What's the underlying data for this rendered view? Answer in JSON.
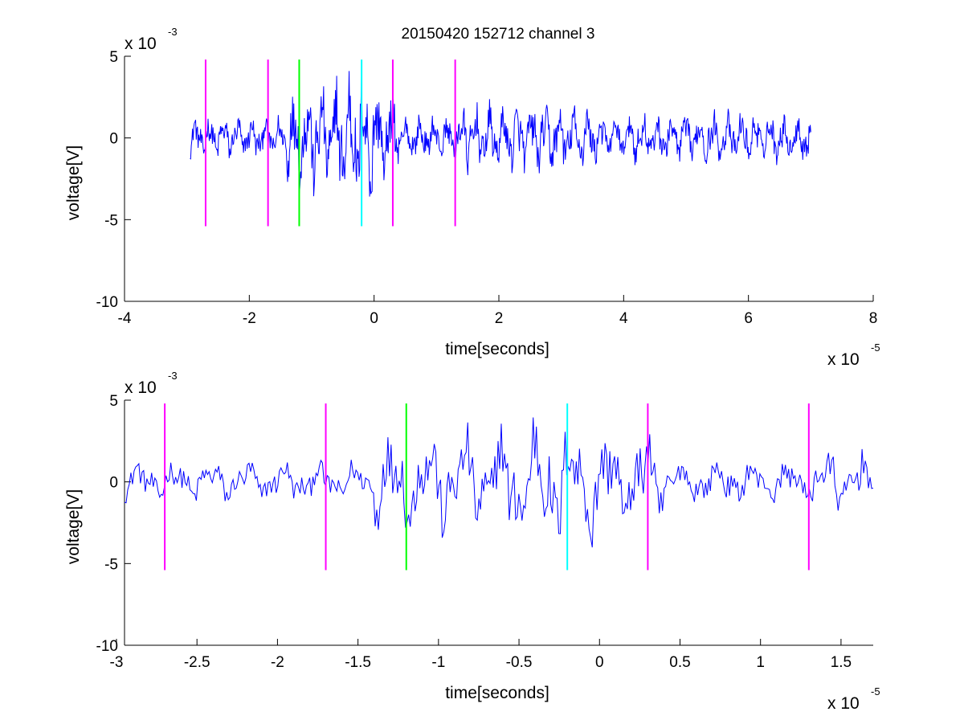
{
  "figure_title": "20150420 152712 channel 3",
  "chart_data": [
    {
      "type": "line",
      "title": "20150420 152712 channel 3",
      "xlabel": "time[seconds]",
      "ylabel": "voltage[V]",
      "xlim": [
        -4e-05,
        8e-05
      ],
      "ylim": [
        -0.01,
        0.005
      ],
      "x_ticks": [
        -4e-05,
        -2e-05,
        0,
        2e-05,
        4e-05,
        6e-05,
        8e-05
      ],
      "x_tick_labels": [
        "-4",
        "-2",
        "0",
        "2",
        "4",
        "6",
        "8"
      ],
      "y_ticks": [
        -0.01,
        -0.005,
        0,
        0.005
      ],
      "y_tick_labels": [
        "-10",
        "-5",
        "0",
        "5"
      ],
      "x_exponent_label": "x 10",
      "x_exponent_power": "-5",
      "y_exponent_label": "x 10",
      "y_exponent_power": "-3",
      "grid": false,
      "signal": {
        "color": "#0000ff",
        "x_start": -2.95e-05,
        "x_end": 7e-05,
        "sample_count": 1000,
        "note_levels": "approximate random-like oscillation between about -4.7e-3 and 3.7e-3 V"
      },
      "markers": [
        {
          "x": -2.7e-05,
          "y_from": -0.0054,
          "y_to": 0.0048,
          "color": "#ff00ff"
        },
        {
          "x": -1.7e-05,
          "y_from": -0.0054,
          "y_to": 0.0048,
          "color": "#ff00ff"
        },
        {
          "x": -1.2e-05,
          "y_from": -0.0054,
          "y_to": 0.0048,
          "color": "#00ff00"
        },
        {
          "x": -2e-06,
          "y_from": -0.0054,
          "y_to": 0.0048,
          "color": "#00ffff"
        },
        {
          "x": 3e-06,
          "y_from": -0.0054,
          "y_to": 0.0048,
          "color": "#ff00ff"
        },
        {
          "x": 1.3e-05,
          "y_from": -0.0054,
          "y_to": 0.0048,
          "color": "#ff00ff"
        }
      ]
    },
    {
      "type": "line",
      "title": "",
      "xlabel": "time[seconds]",
      "ylabel": "voltage[V]",
      "xlim": [
        -2.95e-05,
        1.7e-05
      ],
      "ylim": [
        -0.01,
        0.005
      ],
      "x_ticks": [
        -3e-05,
        -2.5e-05,
        -2e-05,
        -1.5e-05,
        -1e-05,
        -5e-06,
        0,
        5e-06,
        1e-05,
        1.5e-05
      ],
      "x_tick_labels": [
        "-3",
        "-2.5",
        "-2",
        "-1.5",
        "-1",
        "-0.5",
        "0",
        "0.5",
        "1",
        "1.5"
      ],
      "y_ticks": [
        -0.01,
        -0.005,
        0,
        0.005
      ],
      "y_tick_labels": [
        "-10",
        "-5",
        "0",
        "5"
      ],
      "x_exponent_label": "x 10",
      "x_exponent_power": "-5",
      "y_exponent_label": "x 10",
      "y_exponent_power": "-3",
      "grid": false,
      "signal": {
        "color": "#0000ff",
        "x_start": -2.95e-05,
        "x_end": 1.7e-05,
        "sample_count": 470
      },
      "markers": [
        {
          "x": -2.7e-05,
          "y_from": -0.0054,
          "y_to": 0.0048,
          "color": "#ff00ff"
        },
        {
          "x": -1.7e-05,
          "y_from": -0.0054,
          "y_to": 0.0048,
          "color": "#ff00ff"
        },
        {
          "x": -1.2e-05,
          "y_from": -0.0054,
          "y_to": 0.0048,
          "color": "#00ff00"
        },
        {
          "x": -2e-06,
          "y_from": -0.0054,
          "y_to": 0.0048,
          "color": "#00ffff"
        },
        {
          "x": 3e-06,
          "y_from": -0.0054,
          "y_to": 0.0048,
          "color": "#ff00ff"
        },
        {
          "x": 1.3e-05,
          "y_from": -0.0054,
          "y_to": 0.0048,
          "color": "#ff00ff"
        }
      ]
    }
  ]
}
